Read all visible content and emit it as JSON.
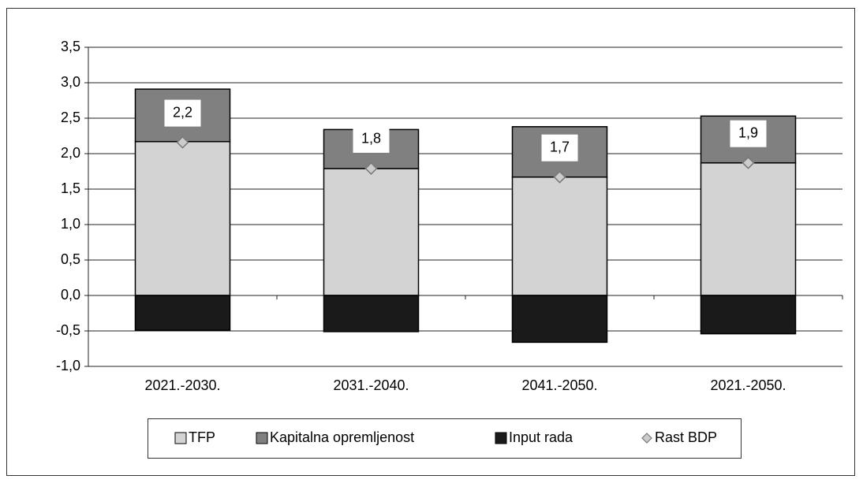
{
  "chart_data": {
    "type": "stacked_bar",
    "categories": [
      "2021.-2030.",
      "2031.-2040.",
      "2041.-2050.",
      "2021.-2050."
    ],
    "series": [
      {
        "name": "TFP",
        "color": "#d3d3d3",
        "values": [
          2.17,
          1.79,
          1.67,
          1.87
        ]
      },
      {
        "name": "Kapitalna opremljenost",
        "color": "#808080",
        "values": [
          0.74,
          0.55,
          0.71,
          0.66
        ]
      },
      {
        "name": "Input rada",
        "color": "#1a1a1a",
        "values": [
          -0.49,
          -0.51,
          -0.66,
          -0.54
        ]
      },
      {
        "name": "Rast BDP",
        "color": "#cccccc",
        "type": "marker",
        "values": [
          2.16,
          1.79,
          1.67,
          1.87
        ],
        "value_labels": [
          "2,2",
          "1,8",
          "1,7",
          "1,9"
        ]
      }
    ],
    "ylim": [
      -1.0,
      3.5
    ],
    "yticks": [
      {
        "value": -1.0,
        "label": "-1,0"
      },
      {
        "value": -0.5,
        "label": "-0,5"
      },
      {
        "value": 0,
        "label": "0,0"
      },
      {
        "value": 0.5,
        "label": "0,5"
      },
      {
        "value": 1.0,
        "label": "1,0"
      },
      {
        "value": 1.5,
        "label": "1,5"
      },
      {
        "value": 2.0,
        "label": "2,0"
      },
      {
        "value": 2.5,
        "label": "2,5"
      },
      {
        "value": 3.0,
        "label": "3,0"
      },
      {
        "value": 3.5,
        "label": "3,5"
      }
    ],
    "grid": true,
    "legend": "bottom"
  }
}
